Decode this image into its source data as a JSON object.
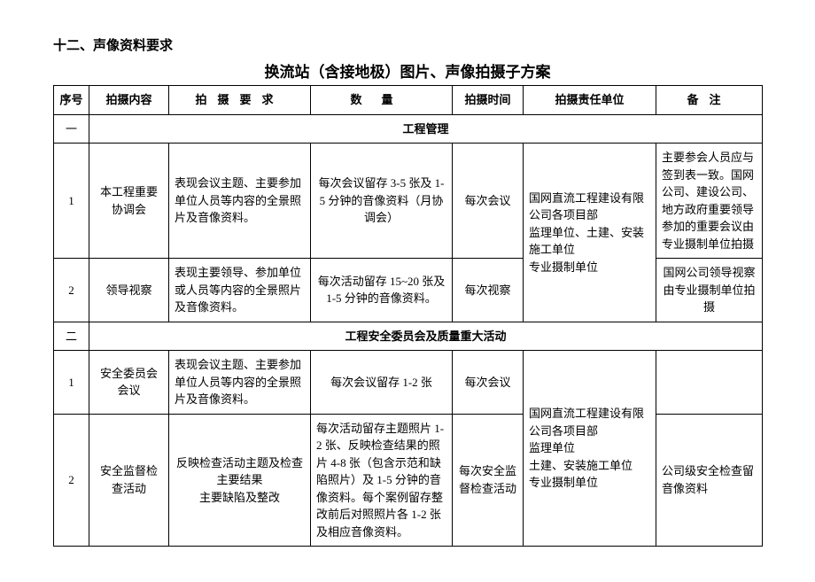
{
  "section_heading": "十二、声像资料要求",
  "doc_title": "换流站（含接地极）图片、声像拍摄子方案",
  "headers": {
    "seq": "序号",
    "content": "拍摄内容",
    "requirement": "拍摄要求",
    "quantity": "数量",
    "time": "拍摄时间",
    "unit": "拍摄责任单位",
    "note": "备注"
  },
  "cat1": {
    "seq": "一",
    "label": "工程管理"
  },
  "row1": {
    "seq": "1",
    "content": "本工程重要协调会",
    "req": "表现会议主题、主要参加单位人员等内容的全景照片及音像资料。",
    "qty": "每次会议留存 3-5 张及 1-5 分钟的音像资料（月协调会）",
    "time": "每次会议",
    "note": "主要参会人员应与签到表一致。国网公司、建设公司、地方政府重要领导参加的重要会议由专业摄制单位拍摄"
  },
  "unit_block1": "国网直流工程建设有限公司各项目部\n监理单位、土建、安装施工单位\n专业摄制单位",
  "row2": {
    "seq": "2",
    "content": "领导视察",
    "req": "表现主要领导、参加单位或人员等内容的全景照片及音像资料。",
    "qty": "每次活动留存 15~20 张及 1-5 分钟的音像资料。",
    "time": "每次视察",
    "note": "国网公司领导视察由专业摄制单位拍摄"
  },
  "cat2": {
    "seq": "二",
    "label": "工程安全委员会及质量重大活动"
  },
  "row3": {
    "seq": "1",
    "content": "安全委员会会议",
    "req": "表现会议主题、主要参加单位人员等内容的全景照片及音像资料。",
    "qty": "每次会议留存 1-2 张",
    "time": "每次会议",
    "note": ""
  },
  "unit_block2": "国网直流工程建设有限公司各项目部\n监理单位\n土建、安装施工单位\n专业摄制单位",
  "row4": {
    "seq": "2",
    "content": "安全监督检查活动",
    "req": "反映检查活动主题及检查主要结果\n主要缺陷及整改",
    "qty": "每次活动留存主题照片 1-2 张、反映检查结果的照片 4-8 张（包含示范和缺陷照片）及 1-5 分钟的音像资料。每个案例留存整改前后对照照片各 1-2 张及相应音像资料。",
    "time": "每次安全监督检查活动",
    "note": "公司级安全检查留音像资料"
  }
}
